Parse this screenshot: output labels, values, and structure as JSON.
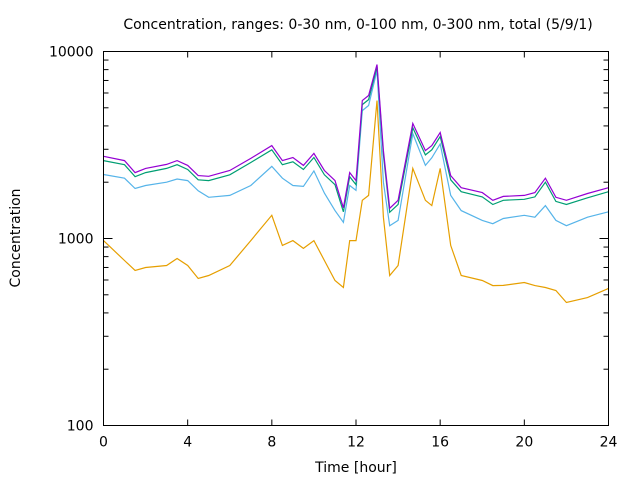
{
  "chart_data": {
    "type": "line",
    "title": "Concentration, ranges: 0-30 nm, 0-100 nm, 0-300 nm, total (5/9/1)",
    "xlabel": "Time [hour]",
    "ylabel": "Concentration",
    "xlim": [
      0,
      24
    ],
    "ylim": [
      100,
      10000
    ],
    "yscale": "log",
    "grid": false,
    "legend": "none",
    "x_ticks": [
      "0",
      "4",
      "8",
      "12",
      "16",
      "20",
      "24"
    ],
    "y_ticks": [
      "100",
      "1000",
      "10000"
    ],
    "x": [
      0,
      1,
      1.5,
      2,
      3,
      3.5,
      4,
      4.5,
      5,
      6,
      7,
      8,
      8.5,
      9,
      9.5,
      10,
      10.5,
      11,
      11.4,
      11.7,
      12,
      12.3,
      12.6,
      13,
      13.3,
      13.6,
      14,
      14.7,
      15.3,
      15.6,
      16,
      16.5,
      17,
      18,
      18.5,
      19,
      20,
      20.5,
      21,
      21.5,
      22,
      23,
      24
    ],
    "series": [
      {
        "name": "0-30 nm",
        "color": "#e69f00",
        "values": [
          975,
          763,
          675,
          700,
          717,
          782,
          717,
          611,
          634,
          717,
          975,
          1330,
          918,
          975,
          885,
          975,
          763,
          596,
          547,
          975,
          975,
          1600,
          1700,
          5470,
          1300,
          634,
          717,
          2370,
          1600,
          1500,
          2370,
          918,
          634,
          596,
          560,
          561,
          582,
          560,
          547,
          527,
          455,
          483,
          541
        ]
      },
      {
        "name": "0-100 nm",
        "color": "#56b4e9",
        "values": [
          2200,
          2100,
          1850,
          1920,
          2000,
          2080,
          2040,
          1800,
          1660,
          1700,
          1920,
          2430,
          2100,
          1920,
          1900,
          2300,
          1750,
          1410,
          1220,
          1920,
          1810,
          4830,
          5140,
          7910,
          2000,
          1170,
          1250,
          3640,
          2460,
          2700,
          3200,
          1700,
          1410,
          1250,
          1200,
          1280,
          1330,
          1300,
          1500,
          1250,
          1170,
          1300,
          1390
        ]
      },
      {
        "name": "0-300 nm",
        "color": "#009e73",
        "values": [
          2610,
          2480,
          2140,
          2250,
          2370,
          2480,
          2340,
          2060,
          2040,
          2190,
          2550,
          2980,
          2480,
          2570,
          2340,
          2710,
          2190,
          1940,
          1390,
          2140,
          1940,
          5200,
          5530,
          8290,
          2800,
          1380,
          1520,
          3910,
          2800,
          2980,
          3510,
          2060,
          1780,
          1670,
          1520,
          1600,
          1620,
          1670,
          2000,
          1580,
          1520,
          1650,
          1780
        ]
      },
      {
        "name": "total",
        "color": "#9400d3",
        "values": [
          2750,
          2610,
          2250,
          2370,
          2490,
          2610,
          2460,
          2170,
          2150,
          2310,
          2680,
          3140,
          2610,
          2710,
          2460,
          2850,
          2310,
          2040,
          1460,
          2250,
          2040,
          5470,
          5820,
          8520,
          2950,
          1450,
          1600,
          4120,
          2950,
          3140,
          3690,
          2170,
          1870,
          1760,
          1600,
          1680,
          1700,
          1760,
          2100,
          1660,
          1600,
          1740,
          1870
        ]
      }
    ]
  }
}
